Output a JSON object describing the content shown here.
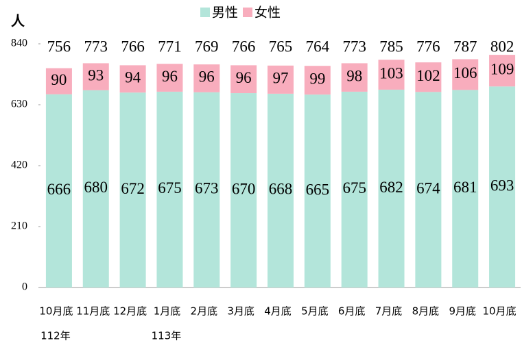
{
  "chart_data": {
    "type": "stacked_bar",
    "y_axis_label": "人",
    "categories": [
      "10月底",
      "11月底",
      "12月底",
      "1月底",
      "2月底",
      "3月底",
      "4月底",
      "5月底",
      "6月底",
      "7月底",
      "8月底",
      "9月底",
      "10月底"
    ],
    "years": [
      "112年",
      null,
      null,
      "113年",
      null,
      null,
      null,
      null,
      null,
      null,
      null,
      null,
      null
    ],
    "series": [
      {
        "name": "男性",
        "color": "#b3e5da",
        "values": [
          666,
          680,
          672,
          675,
          673,
          670,
          668,
          665,
          675,
          682,
          674,
          681,
          693
        ]
      },
      {
        "name": "女性",
        "color": "#f8adbd",
        "values": [
          90,
          93,
          94,
          96,
          96,
          96,
          97,
          99,
          98,
          103,
          102,
          106,
          109
        ]
      }
    ],
    "totals": [
      756,
      773,
      766,
      771,
      769,
      766,
      765,
      764,
      773,
      785,
      776,
      787,
      802
    ],
    "ylim": [
      0,
      840
    ],
    "yticks": [
      0,
      210,
      420,
      630,
      840
    ],
    "legend": "top"
  }
}
